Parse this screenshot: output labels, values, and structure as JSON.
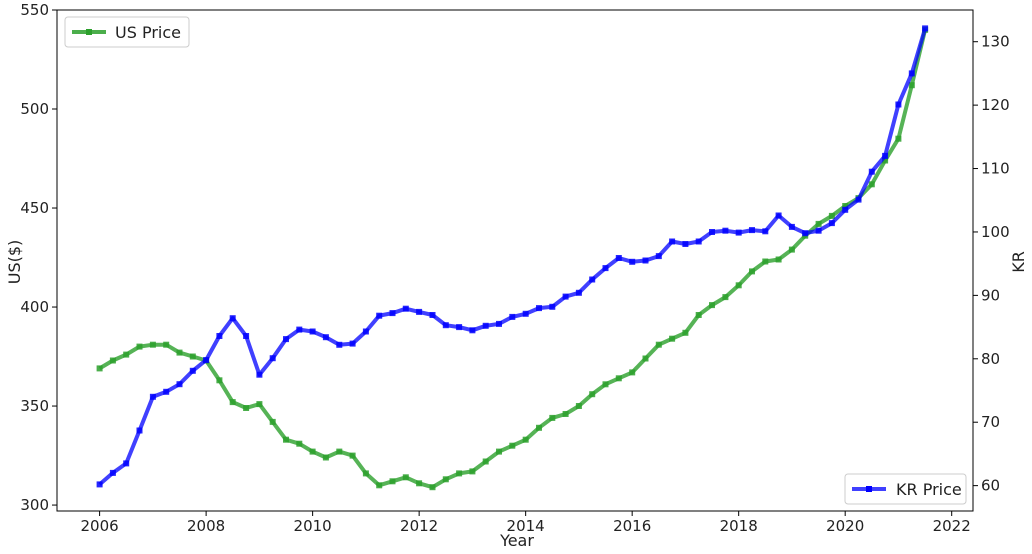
{
  "chart_data": {
    "type": "line",
    "xlabel": "Year",
    "ylabel_left": "US($)",
    "ylabel_right": "KR",
    "xlim": [
      2005.2,
      2022.4
    ],
    "ylim_left": [
      297,
      550
    ],
    "ylim_right": [
      56,
      135
    ],
    "xticks": [
      2006,
      2008,
      2010,
      2012,
      2014,
      2016,
      2018,
      2020,
      2022
    ],
    "yticks_left": [
      300,
      350,
      400,
      450,
      500,
      550
    ],
    "yticks_right": [
      60,
      70,
      80,
      90,
      100,
      110,
      120,
      130
    ],
    "grid": false,
    "series": [
      {
        "name": "US Price",
        "axis": "left",
        "color": "#2ca02c",
        "legend_position": "top-left",
        "x": [
          2006.0,
          2006.25,
          2006.5,
          2006.75,
          2007.0,
          2007.25,
          2007.5,
          2007.75,
          2008.0,
          2008.25,
          2008.5,
          2008.75,
          2009.0,
          2009.25,
          2009.5,
          2009.75,
          2010.0,
          2010.25,
          2010.5,
          2010.75,
          2011.0,
          2011.25,
          2011.5,
          2011.75,
          2012.0,
          2012.25,
          2012.5,
          2012.75,
          2013.0,
          2013.25,
          2013.5,
          2013.75,
          2014.0,
          2014.25,
          2014.5,
          2014.75,
          2015.0,
          2015.25,
          2015.5,
          2015.75,
          2016.0,
          2016.25,
          2016.5,
          2016.75,
          2017.0,
          2017.25,
          2017.5,
          2017.75,
          2018.0,
          2018.25,
          2018.5,
          2018.75,
          2019.0,
          2019.25,
          2019.5,
          2019.75,
          2020.0,
          2020.25,
          2020.5,
          2020.75,
          2021.0,
          2021.25,
          2021.5
        ],
        "values": [
          369,
          373,
          376,
          380,
          381,
          381,
          377,
          375,
          373,
          363,
          352,
          349,
          351,
          342,
          333,
          331,
          327,
          324,
          327,
          325,
          316,
          310,
          312,
          314,
          311,
          309,
          313,
          316,
          317,
          322,
          327,
          330,
          333,
          339,
          344,
          346,
          350,
          356,
          361,
          364,
          367,
          374,
          381,
          384,
          387,
          396,
          401,
          405,
          411,
          418,
          423,
          424,
          429,
          436,
          442,
          446,
          451,
          455,
          462,
          474,
          485,
          512,
          540
        ]
      },
      {
        "name": "KR Price",
        "axis": "right",
        "color": "#0000ff",
        "legend_position": "bottom-right",
        "x": [
          2006.0,
          2006.25,
          2006.5,
          2006.75,
          2007.0,
          2007.25,
          2007.5,
          2007.75,
          2008.0,
          2008.25,
          2008.5,
          2008.75,
          2009.0,
          2009.25,
          2009.5,
          2009.75,
          2010.0,
          2010.25,
          2010.5,
          2010.75,
          2011.0,
          2011.25,
          2011.5,
          2011.75,
          2012.0,
          2012.25,
          2012.5,
          2012.75,
          2013.0,
          2013.25,
          2013.5,
          2013.75,
          2014.0,
          2014.25,
          2014.5,
          2014.75,
          2015.0,
          2015.25,
          2015.5,
          2015.75,
          2016.0,
          2016.25,
          2016.5,
          2016.75,
          2017.0,
          2017.25,
          2017.5,
          2017.75,
          2018.0,
          2018.25,
          2018.5,
          2018.75,
          2019.0,
          2019.25,
          2019.5,
          2019.75,
          2020.0,
          2020.25,
          2020.5,
          2020.75,
          2021.0,
          2021.25,
          2021.5
        ],
        "values": [
          60.2,
          62.0,
          63.5,
          68.7,
          74.0,
          74.8,
          76.0,
          78.1,
          79.8,
          83.6,
          86.4,
          83.6,
          77.5,
          80.1,
          83.1,
          84.6,
          84.3,
          83.4,
          82.2,
          82.4,
          84.3,
          86.8,
          87.2,
          87.9,
          87.4,
          86.9,
          85.3,
          85.0,
          84.5,
          85.2,
          85.5,
          86.6,
          87.1,
          88.0,
          88.2,
          89.8,
          90.4,
          92.5,
          94.3,
          95.9,
          95.3,
          95.5,
          96.2,
          98.5,
          98.1,
          98.5,
          100.0,
          100.2,
          99.9,
          100.3,
          100.1,
          102.6,
          100.8,
          99.8,
          100.2,
          101.4,
          103.5,
          105.1,
          109.5,
          112.0,
          120.1,
          125.0,
          132.1
        ]
      }
    ]
  }
}
